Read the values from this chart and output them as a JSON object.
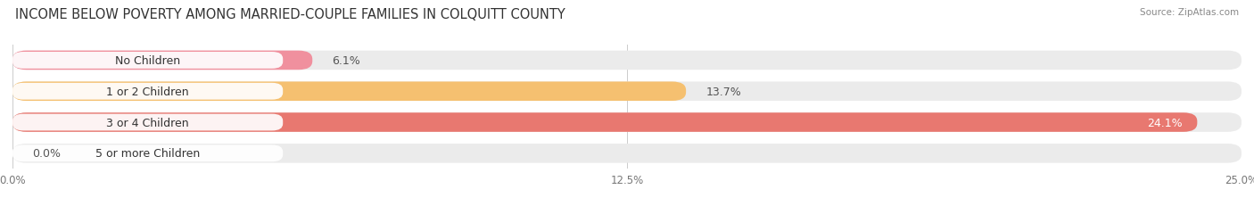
{
  "title": "INCOME BELOW POVERTY AMONG MARRIED-COUPLE FAMILIES IN COLQUITT COUNTY",
  "source": "Source: ZipAtlas.com",
  "categories": [
    "No Children",
    "1 or 2 Children",
    "3 or 4 Children",
    "5 or more Children"
  ],
  "values": [
    6.1,
    13.7,
    24.1,
    0.0
  ],
  "bar_colors": [
    "#f0909e",
    "#f5c070",
    "#e87870",
    "#a8c4e0"
  ],
  "background_color": "#ffffff",
  "bar_bg_color": "#ebebeb",
  "xlim": [
    0,
    25.0
  ],
  "xticks": [
    0.0,
    12.5,
    25.0
  ],
  "xticklabels": [
    "0.0%",
    "12.5%",
    "25.0%"
  ],
  "title_fontsize": 10.5,
  "label_fontsize": 9,
  "value_fontsize": 9,
  "bar_height": 0.62,
  "value_inside_threshold": 20.0
}
